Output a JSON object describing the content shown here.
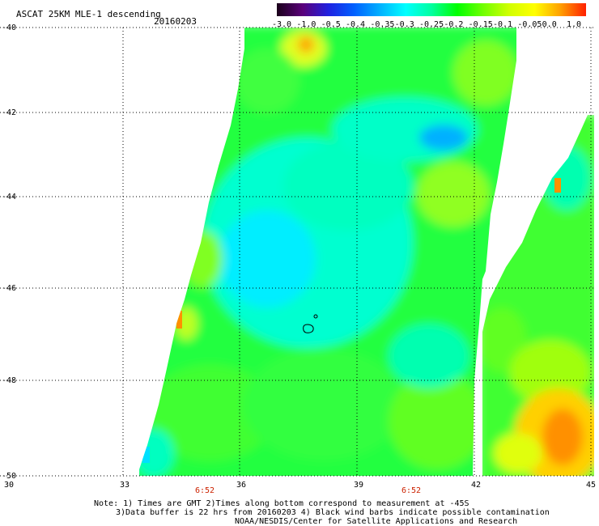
{
  "header": {
    "title": "ASCAT 25KM MLE-1 descending",
    "date": "20160203"
  },
  "colorbar": {
    "labels": [
      "-3.0",
      "-1.0",
      "-0.5",
      "-0.4",
      "-0.35",
      "-0.3",
      "-0.25",
      "-0.2",
      "-0.15",
      "-0.1",
      "-0.05",
      "0.0",
      "1.0"
    ],
    "colors": [
      "#1a001a",
      "#5a007a",
      "#2020e0",
      "#0060ff",
      "#00b0ff",
      "#00ffff",
      "#00ffa0",
      "#00ff00",
      "#70ff00",
      "#d0ff00",
      "#ffff00",
      "#ffa000",
      "#ff2000"
    ]
  },
  "map": {
    "lon_ticks": [
      "30",
      "33",
      "36",
      "39",
      "42",
      "45"
    ],
    "lat_ticks": [
      "-40",
      "-42",
      "-44",
      "-46",
      "-48",
      "-50"
    ],
    "time_labels": [
      "6:52",
      "6:52"
    ],
    "time_color": "#cc2200"
  },
  "notes": {
    "line1": "Note: 1) Times are GMT 2)Times along bottom correspond to measurement at -45S",
    "line2": "3)Data buffer is 22 hrs from 20160203 4) Black wind barbs indicate possible contamination",
    "line3": "NOAA/NESDIS/Center for Satellite Applications and Research"
  }
}
